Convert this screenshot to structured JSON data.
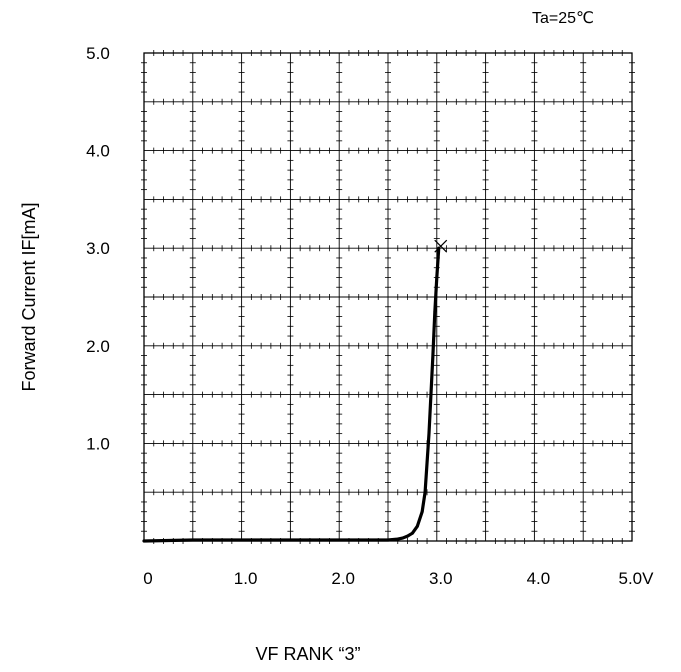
{
  "chart_data": {
    "type": "line",
    "annotation": "Ta=25℃",
    "xlabel": "VF RANK “3”",
    "ylabel": "Forward Current IF[mA]",
    "xlim": [
      0,
      5.0
    ],
    "ylim": [
      0,
      5.0
    ],
    "x_ticks": [
      {
        "value": 0,
        "label": "0"
      },
      {
        "value": 1.0,
        "label": "1.0"
      },
      {
        "value": 2.0,
        "label": "2.0"
      },
      {
        "value": 3.0,
        "label": "3.0"
      },
      {
        "value": 4.0,
        "label": "4.0"
      },
      {
        "value": 5.0,
        "label": "5.0V"
      }
    ],
    "y_ticks": [
      {
        "value": 1.0,
        "label": "1.0"
      },
      {
        "value": 2.0,
        "label": "2.0"
      },
      {
        "value": 3.0,
        "label": "3.0"
      },
      {
        "value": 4.0,
        "label": "4.0"
      },
      {
        "value": 5.0,
        "label": "5.0"
      }
    ],
    "grid": true,
    "grid_step": 0.5,
    "minor_ticks_per_division": 5,
    "series": [
      {
        "color": "#000000",
        "end_marker": "x",
        "x": [
          0,
          0.5,
          1.0,
          1.5,
          2.0,
          2.5,
          2.6,
          2.65,
          2.7,
          2.75,
          2.8,
          2.85,
          2.88,
          2.9,
          2.92,
          2.94,
          2.96,
          2.98,
          3.0,
          3.02
        ],
        "y": [
          0,
          0.01,
          0.01,
          0.01,
          0.01,
          0.01,
          0.02,
          0.03,
          0.05,
          0.08,
          0.15,
          0.3,
          0.5,
          0.8,
          1.1,
          1.5,
          1.9,
          2.35,
          2.7,
          3.0
        ]
      }
    ]
  }
}
